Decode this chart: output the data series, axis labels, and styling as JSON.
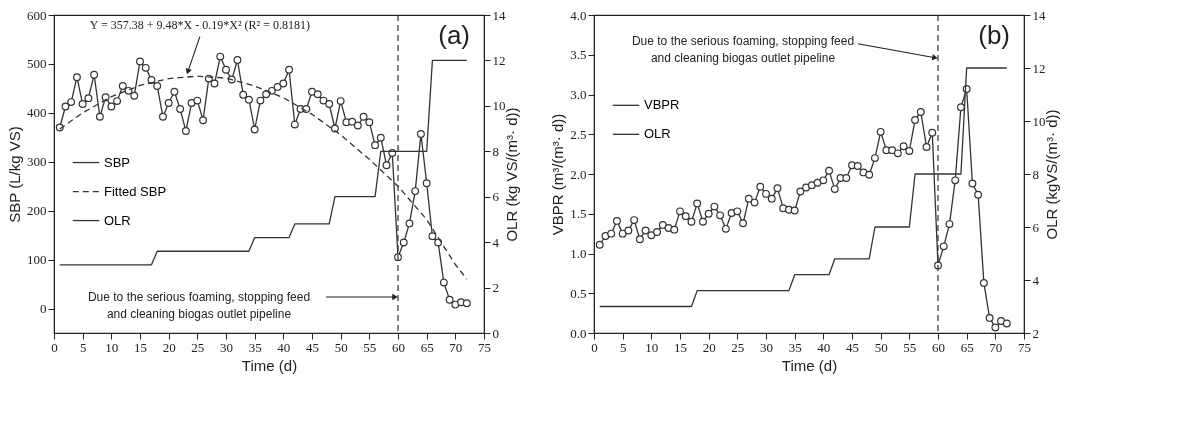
{
  "chart_data": [
    {
      "type": "line",
      "xlabel": "Time (d)",
      "ylabel": "SBP (L/kg VS)",
      "y2label": "OLR (kg VS/(m³· d))",
      "xlim": [
        0,
        75
      ],
      "xticks": [
        0,
        5,
        10,
        15,
        20,
        25,
        30,
        35,
        40,
        45,
        50,
        55,
        60,
        65,
        70,
        75
      ],
      "ylim": [
        -50,
        600
      ],
      "yticks": [
        0,
        100,
        200,
        300,
        400,
        500,
        600
      ],
      "y2lim": [
        0,
        14
      ],
      "y2ticks": [
        0,
        2,
        4,
        6,
        8,
        10,
        12,
        14
      ],
      "grid": false,
      "legend": "left",
      "series": [
        {
          "name": "SBP",
          "type": "line",
          "marker": "circle",
          "line_style": "solid",
          "color": "#333333",
          "x": [
            1,
            2,
            3,
            4,
            5,
            6,
            7,
            8,
            9,
            10,
            11,
            12,
            13,
            14,
            15,
            16,
            17,
            18,
            19,
            20,
            21,
            22,
            23,
            24,
            25,
            26,
            27,
            28,
            29,
            30,
            31,
            32,
            33,
            34,
            35,
            36,
            37,
            38,
            39,
            40,
            41,
            42,
            43,
            44,
            45,
            46,
            47,
            48,
            49,
            50,
            51,
            52,
            53,
            54,
            55,
            56,
            57,
            58,
            59,
            60,
            61,
            62,
            63,
            64,
            65,
            66,
            67,
            68,
            69,
            70,
            71,
            72
          ],
          "values": [
            370,
            413,
            422,
            473,
            418,
            430,
            478,
            392,
            432,
            413,
            424,
            455,
            445,
            435,
            505,
            492,
            467,
            455,
            392,
            420,
            443,
            408,
            363,
            420,
            425,
            385,
            470,
            460,
            515,
            488,
            468,
            508,
            437,
            427,
            366,
            425,
            438,
            445,
            453,
            460,
            488,
            376,
            408,
            408,
            443,
            438,
            425,
            418,
            368,
            424,
            381,
            382,
            374,
            392,
            381,
            334,
            349,
            293,
            318,
            105,
            135,
            174,
            240,
            357,
            256,
            148,
            135,
            53,
            18,
            8,
            13,
            11
          ]
        },
        {
          "name": "Fitted SBP",
          "type": "line",
          "marker": "none",
          "line_style": "dashed",
          "color": "#333333",
          "x": [
            1,
            5,
            10,
            15,
            20,
            25,
            30,
            35,
            40,
            45,
            50,
            55,
            60,
            65,
            70,
            72
          ],
          "values": [
            367,
            400,
            433,
            456,
            470,
            475,
            471,
            455,
            431,
            397,
            355,
            305,
            250,
            182,
            90,
            60
          ]
        },
        {
          "name": "OLR",
          "type": "line",
          "axis": "y2",
          "marker": "none",
          "line_style": "solid",
          "color": "#333333",
          "x": [
            1,
            17,
            18,
            34,
            35,
            41,
            42,
            48,
            49,
            56,
            57,
            65,
            66,
            72
          ],
          "values": [
            3,
            3,
            3.6,
            3.6,
            4.2,
            4.2,
            4.8,
            4.8,
            6,
            6,
            8,
            8,
            12,
            12
          ]
        }
      ],
      "ref_lines": [
        {
          "axis": "x",
          "value": 60,
          "line_style": "dashed",
          "color": "#333333"
        }
      ],
      "annotations": [
        {
          "text": "Y = 357.38 + 9.48*X - 0.19*X² (R² = 0.8181)",
          "x": 23,
          "y": 474
        },
        "(a)",
        "Due to the serious foaming, stopping feed\nand cleaning biogas outlet pipeline"
      ]
    },
    {
      "type": "line",
      "xlabel": "Time (d)",
      "ylabel": "VBPR (m³/(m³· d))",
      "y2label": "OLR (kgVS/(m³· d))",
      "xlim": [
        0,
        75
      ],
      "xticks": [
        0,
        5,
        10,
        15,
        20,
        25,
        30,
        35,
        40,
        45,
        50,
        55,
        60,
        65,
        70,
        75
      ],
      "ylim": [
        0,
        4
      ],
      "yticks": [
        {
          "value": 0,
          "label": "0.0"
        },
        0.5,
        {
          "value": 1,
          "label": "1.0"
        },
        1.5,
        {
          "value": 2,
          "label": "2.0"
        },
        2.5,
        {
          "value": 3,
          "label": "3.0"
        },
        3.5,
        {
          "value": 4,
          "label": "4.0"
        }
      ],
      "y2lim": [
        2,
        14
      ],
      "y2ticks": [
        2,
        4,
        6,
        8,
        10,
        12,
        14
      ],
      "grid": false,
      "legend": "top left",
      "series": [
        {
          "name": "VBPR",
          "type": "line",
          "marker": "circle",
          "line_style": "solid",
          "color": "#333333",
          "x": [
            1,
            2,
            3,
            4,
            5,
            6,
            7,
            8,
            9,
            10,
            11,
            12,
            13,
            14,
            15,
            16,
            17,
            18,
            19,
            20,
            21,
            22,
            23,
            24,
            25,
            26,
            27,
            28,
            29,
            30,
            31,
            32,
            33,
            34,
            35,
            36,
            37,
            38,
            39,
            40,
            41,
            42,
            43,
            44,
            45,
            46,
            47,
            48,
            49,
            50,
            51,
            52,
            53,
            54,
            55,
            56,
            57,
            58,
            59,
            60,
            61,
            62,
            63,
            64,
            65,
            66,
            67,
            68,
            69,
            70,
            71,
            72
          ],
          "values": [
            1.11,
            1.22,
            1.25,
            1.41,
            1.25,
            1.29,
            1.42,
            1.18,
            1.29,
            1.23,
            1.27,
            1.36,
            1.32,
            1.3,
            1.53,
            1.47,
            1.4,
            1.63,
            1.4,
            1.5,
            1.59,
            1.48,
            1.31,
            1.51,
            1.53,
            1.38,
            1.69,
            1.64,
            1.84,
            1.75,
            1.69,
            1.82,
            1.57,
            1.55,
            1.54,
            1.78,
            1.83,
            1.86,
            1.89,
            1.92,
            2.04,
            1.81,
            1.95,
            1.95,
            2.11,
            2.1,
            2.02,
            1.99,
            2.2,
            2.53,
            2.3,
            2.3,
            2.26,
            2.35,
            2.29,
            2.68,
            2.78,
            2.34,
            2.52,
            0.85,
            1.09,
            1.37,
            1.92,
            2.84,
            3.07,
            1.88,
            1.74,
            0.63,
            0.19,
            0.07,
            0.15,
            0.12
          ]
        },
        {
          "name": "OLR",
          "type": "line",
          "axis": "y2",
          "marker": "none",
          "line_style": "solid",
          "color": "#333333",
          "x": [
            1,
            17,
            18,
            34,
            35,
            41,
            42,
            48,
            49,
            55,
            56,
            64,
            65,
            72
          ],
          "values": [
            3,
            3,
            3.6,
            3.6,
            4.2,
            4.2,
            4.8,
            4.8,
            6,
            6,
            8,
            8,
            12,
            12
          ]
        }
      ],
      "ref_lines": [
        {
          "axis": "x",
          "value": 60,
          "line_style": "dashed",
          "color": "#333333"
        }
      ],
      "annotations": [
        {
          "text": "Due to the serious foaming, stopping feed\nand cleaning biogas outlet pipeline",
          "x": 60,
          "y": 3.45
        },
        "(b)"
      ]
    }
  ]
}
